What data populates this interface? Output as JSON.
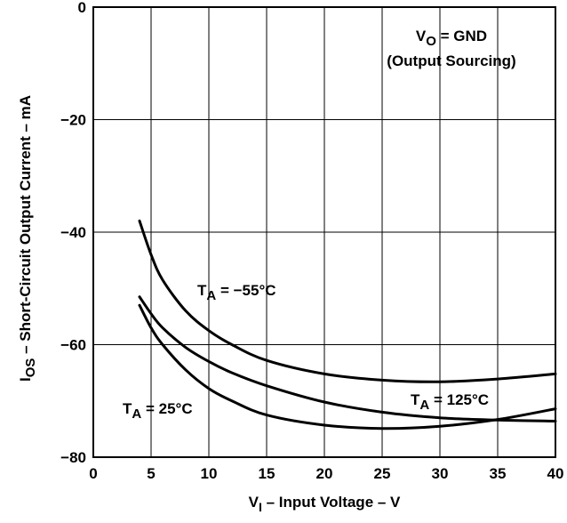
{
  "chart_data": {
    "type": "line",
    "title": "",
    "xlabel": {
      "main": "V",
      "sub": "I",
      "rest": " – Input Voltage – V"
    },
    "ylabel": {
      "main": "I",
      "sub": "OS",
      "rest": " – Short-Circuit Output Current – mA"
    },
    "xlim": [
      0,
      40
    ],
    "ylim": [
      -80,
      0
    ],
    "x_ticks": [
      {
        "value": 0,
        "label": "0"
      },
      {
        "value": 5,
        "label": "5"
      },
      {
        "value": 10,
        "label": "10"
      },
      {
        "value": 15,
        "label": "15"
      },
      {
        "value": 20,
        "label": "20"
      },
      {
        "value": 25,
        "label": "25"
      },
      {
        "value": 30,
        "label": "30"
      },
      {
        "value": 35,
        "label": "35"
      },
      {
        "value": 40,
        "label": "40"
      }
    ],
    "y_ticks": [
      {
        "value": 0,
        "label": "0"
      },
      {
        "value": -20,
        "label": "−20"
      },
      {
        "value": -40,
        "label": "−40"
      },
      {
        "value": -60,
        "label": "−60"
      },
      {
        "value": -80,
        "label": "−80"
      }
    ],
    "grid": true,
    "condition_box": {
      "line1_main": "V",
      "line1_sub": "O",
      "line1_rest": " = GND",
      "line2": "(Output Sourcing)"
    },
    "annotations": [
      {
        "series": "T_A = −55°C",
        "main": "T",
        "sub": "A",
        "rest": " = −55°C"
      },
      {
        "series": "T_A = 25°C",
        "main": "T",
        "sub": "A",
        "rest": " = 25°C"
      },
      {
        "series": "T_A = 125°C",
        "main": "T",
        "sub": "A",
        "rest": " = 125°C"
      }
    ],
    "series": [
      {
        "name": "T_A = −55°C",
        "x": [
          4,
          5,
          6,
          8,
          10,
          12,
          15,
          20,
          25,
          30,
          35,
          40
        ],
        "y": [
          -38,
          -44,
          -48.5,
          -54,
          -57.5,
          -60,
          -62.8,
          -65.2,
          -66.3,
          -66.6,
          -66.1,
          -65.2
        ]
      },
      {
        "name": "T_A = 25°C",
        "x": [
          4,
          5,
          6,
          8,
          10,
          12,
          15,
          20,
          25,
          30,
          35,
          40
        ],
        "y": [
          -51.5,
          -54.5,
          -57,
          -60.5,
          -63,
          -65,
          -67.3,
          -70.2,
          -72,
          -73,
          -73.4,
          -73.6
        ]
      },
      {
        "name": "T_A = 125°C",
        "x": [
          4,
          5,
          6,
          8,
          10,
          12,
          15,
          20,
          25,
          30,
          35,
          40
        ],
        "y": [
          -53,
          -57,
          -60,
          -64.5,
          -67.8,
          -70,
          -72.5,
          -74.3,
          -74.9,
          -74.5,
          -73.3,
          -71.4
        ]
      }
    ]
  }
}
